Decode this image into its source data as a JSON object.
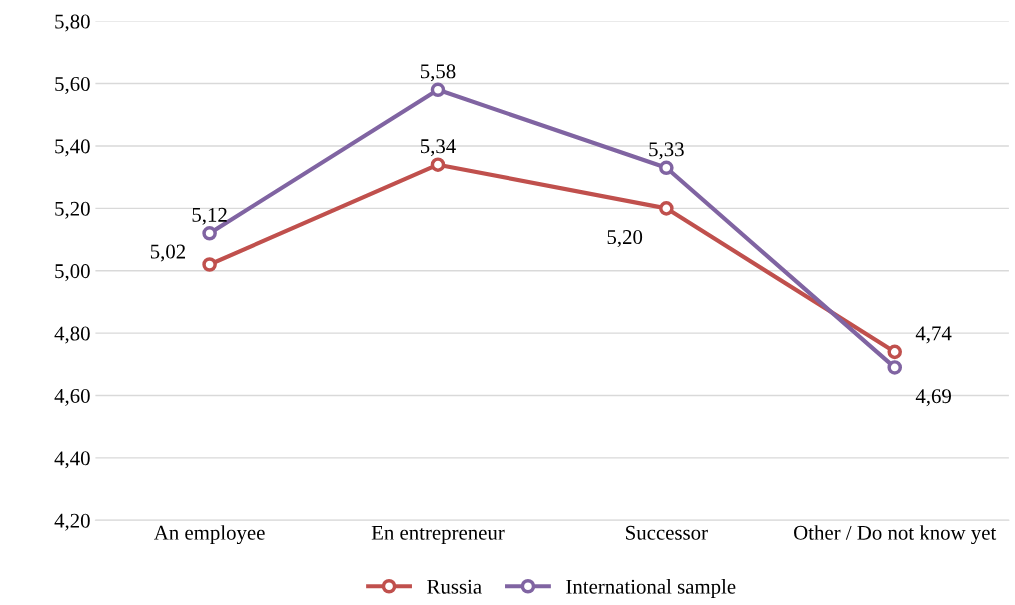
{
  "chart_data": {
    "type": "line",
    "categories": [
      "An employee",
      "En entrepreneur",
      "Successor",
      "Other / Do not know yet"
    ],
    "series": [
      {
        "name": "Russia",
        "color": "#c0504d",
        "values": [
          5.02,
          5.34,
          5.2,
          4.74
        ],
        "value_labels": [
          "5,02",
          "5,34",
          "5,20",
          "4,74"
        ]
      },
      {
        "name": "International sample",
        "color": "#8064a2",
        "values": [
          5.12,
          5.58,
          5.33,
          4.69
        ],
        "value_labels": [
          "5,12",
          "5,58",
          "5,33",
          "4,69"
        ]
      }
    ],
    "ylim": [
      4.2,
      5.8
    ],
    "yticks": [
      {
        "value": 4.2,
        "label": "4,20"
      },
      {
        "value": 4.4,
        "label": "4,40"
      },
      {
        "value": 4.6,
        "label": "4,60"
      },
      {
        "value": 4.8,
        "label": "4,80"
      },
      {
        "value": 5.0,
        "label": "5,00"
      },
      {
        "value": 5.2,
        "label": "5,20"
      },
      {
        "value": 5.4,
        "label": "5,40"
      },
      {
        "value": 5.6,
        "label": "5,60"
      },
      {
        "value": 5.8,
        "label": "5,80"
      }
    ],
    "grid": "y",
    "legend": "bottom",
    "marker": "circle",
    "line_style": "solid"
  }
}
